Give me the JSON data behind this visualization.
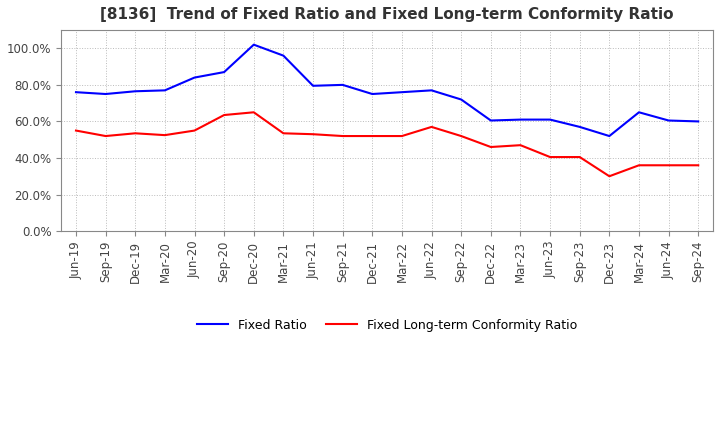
{
  "title": "[8136]  Trend of Fixed Ratio and Fixed Long-term Conformity Ratio",
  "fixed_ratio": {
    "label": "Fixed Ratio",
    "color": "#0000FF",
    "data": [
      [
        "Jun-19",
        76.0
      ],
      [
        "Sep-19",
        75.0
      ],
      [
        "Dec-19",
        76.5
      ],
      [
        "Mar-20",
        77.0
      ],
      [
        "Jun-20",
        84.0
      ],
      [
        "Sep-20",
        87.0
      ],
      [
        "Dec-20",
        102.0
      ],
      [
        "Mar-21",
        96.0
      ],
      [
        "Jun-21",
        79.5
      ],
      [
        "Sep-21",
        80.0
      ],
      [
        "Dec-21",
        75.0
      ],
      [
        "Mar-22",
        76.0
      ],
      [
        "Jun-22",
        77.0
      ],
      [
        "Sep-22",
        72.0
      ],
      [
        "Dec-22",
        60.5
      ],
      [
        "Mar-23",
        61.0
      ],
      [
        "Jun-23",
        61.0
      ],
      [
        "Sep-23",
        57.0
      ],
      [
        "Dec-23",
        52.0
      ],
      [
        "Mar-24",
        65.0
      ],
      [
        "Jun-24",
        60.5
      ],
      [
        "Sep-24",
        60.0
      ]
    ]
  },
  "fixed_lt_ratio": {
    "label": "Fixed Long-term Conformity Ratio",
    "color": "#FF0000",
    "data": [
      [
        "Jun-19",
        55.0
      ],
      [
        "Sep-19",
        52.0
      ],
      [
        "Dec-19",
        53.5
      ],
      [
        "Mar-20",
        52.5
      ],
      [
        "Jun-20",
        55.0
      ],
      [
        "Sep-20",
        63.5
      ],
      [
        "Dec-20",
        65.0
      ],
      [
        "Mar-21",
        53.5
      ],
      [
        "Jun-21",
        53.0
      ],
      [
        "Sep-21",
        52.0
      ],
      [
        "Dec-21",
        52.0
      ],
      [
        "Mar-22",
        52.0
      ],
      [
        "Jun-22",
        57.0
      ],
      [
        "Sep-22",
        52.0
      ],
      [
        "Dec-22",
        46.0
      ],
      [
        "Mar-23",
        47.0
      ],
      [
        "Jun-23",
        40.5
      ],
      [
        "Sep-23",
        40.5
      ],
      [
        "Dec-23",
        30.0
      ],
      [
        "Mar-24",
        36.0
      ],
      [
        "Jun-24",
        36.0
      ],
      [
        "Sep-24",
        36.0
      ]
    ]
  },
  "ylim": [
    0.0,
    110.0
  ],
  "yticks": [
    0.0,
    20.0,
    40.0,
    60.0,
    80.0,
    100.0
  ],
  "background_color": "#FFFFFF",
  "grid_color": "#BBBBBB",
  "title_fontsize": 11,
  "legend_fontsize": 9,
  "tick_fontsize": 8.5
}
